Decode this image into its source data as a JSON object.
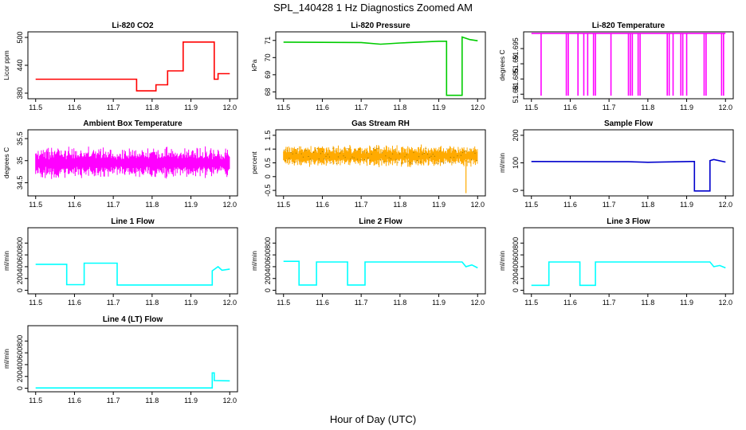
{
  "figure": {
    "title": "SPL_140428 1 Hz Diagnostics Zoomed AM",
    "xlabel": "Hour of Day (UTC)"
  },
  "chart_data": [
    {
      "type": "line",
      "title": "Li-820 CO2",
      "ylabel": "Licor ppm",
      "color": "#ff0000",
      "xlim": [
        11.48,
        12.02
      ],
      "ylim": [
        368,
        512
      ],
      "xticks": [
        "11.5",
        "11.6",
        "11.7",
        "11.8",
        "11.9",
        "12.0"
      ],
      "yticks": [
        380,
        440,
        500
      ],
      "style": "step",
      "x": [
        11.5,
        11.76,
        11.76,
        11.81,
        11.81,
        11.84,
        11.84,
        11.88,
        11.88,
        11.96,
        11.96,
        11.97,
        11.97,
        12.0
      ],
      "y": [
        410,
        410,
        385,
        385,
        398,
        398,
        428,
        428,
        490,
        490,
        410,
        410,
        422,
        422
      ]
    },
    {
      "type": "line",
      "title": "Li-820 Pressure",
      "ylabel": "kPa",
      "color": "#00cc00",
      "xlim": [
        11.48,
        12.02
      ],
      "ylim": [
        67.6,
        71.5
      ],
      "xticks": [
        "11.5",
        "11.6",
        "11.7",
        "11.8",
        "11.9",
        "12.0"
      ],
      "yticks": [
        68,
        69,
        70,
        71
      ],
      "style": "step",
      "x": [
        11.5,
        11.7,
        11.75,
        11.8,
        11.9,
        11.92,
        11.92,
        11.96,
        11.96,
        11.98,
        12.0
      ],
      "y": [
        70.9,
        70.88,
        70.78,
        70.85,
        70.95,
        70.95,
        67.8,
        67.8,
        71.2,
        71.05,
        70.98
      ]
    },
    {
      "type": "line",
      "title": "Li-820 Temperature",
      "ylabel": "degrees C",
      "color": "#ff00ff",
      "xlim": [
        11.48,
        12.02
      ],
      "ylim": [
        51.6785,
        51.7005
      ],
      "xticks": [
        "11.5",
        "11.6",
        "11.7",
        "11.8",
        "11.9",
        "12.0"
      ],
      "yticks": [
        51.68,
        51.685,
        51.69,
        51.695
      ],
      "style": "spikes",
      "baseline": 51.7,
      "low": 51.6795,
      "x": [
        11.525,
        11.59,
        11.595,
        11.62,
        11.635,
        11.645,
        11.66,
        11.665,
        11.705,
        11.75,
        11.755,
        11.76,
        11.775,
        11.78,
        11.85,
        11.855,
        11.865,
        11.885,
        11.89,
        11.9,
        11.945,
        11.95,
        11.99,
        11.995
      ]
    },
    {
      "type": "line",
      "title": "Ambient Box Temperature",
      "ylabel": "degrees C",
      "color": "#ff00ff",
      "xlim": [
        11.48,
        12.02
      ],
      "ylim": [
        34.2,
        35.7
      ],
      "xticks": [
        "11.5",
        "11.6",
        "11.7",
        "11.8",
        "11.9",
        "12.0"
      ],
      "yticks": [
        34.5,
        35.0,
        35.5
      ],
      "style": "noise",
      "center": 34.95,
      "amp": 0.32,
      "x": [
        11.5,
        12.0
      ]
    },
    {
      "type": "line",
      "title": "Gas Stream RH",
      "ylabel": "percent",
      "color": "#ffaa00",
      "xlim": [
        11.48,
        12.02
      ],
      "ylim": [
        -0.7,
        1.7
      ],
      "xticks": [
        "11.5",
        "11.6",
        "11.7",
        "11.8",
        "11.9",
        "12.0"
      ],
      "yticks": [
        -0.5,
        0.0,
        0.5,
        1.0,
        1.5
      ],
      "style": "noise",
      "center": 0.75,
      "amp": 0.35,
      "x": [
        11.5,
        12.0
      ]
    },
    {
      "type": "line",
      "title": "Sample Flow",
      "ylabel": "ml/min",
      "color": "#0000cc",
      "xlim": [
        11.48,
        12.02
      ],
      "ylim": [
        -20,
        220
      ],
      "xticks": [
        "11.5",
        "11.6",
        "11.7",
        "11.8",
        "11.9",
        "12.0"
      ],
      "yticks": [
        0,
        100,
        200
      ],
      "style": "step",
      "x": [
        11.5,
        11.75,
        11.8,
        11.91,
        11.92,
        11.92,
        11.96,
        11.96,
        11.97,
        12.0
      ],
      "y": [
        105,
        104,
        102,
        105,
        105,
        -2,
        -2,
        108,
        112,
        103
      ]
    },
    {
      "type": "line",
      "title": "Line 1 Flow",
      "ylabel": "ml/min",
      "color": "#00ffff",
      "xlim": [
        11.48,
        12.02
      ],
      "ylim": [
        -60,
        1060
      ],
      "xticks": [
        "11.5",
        "11.6",
        "11.7",
        "11.8",
        "11.9",
        "12.0"
      ],
      "yticks": [
        0,
        200,
        400,
        600,
        800
      ],
      "style": "step",
      "x": [
        11.5,
        11.58,
        11.58,
        11.625,
        11.625,
        11.71,
        11.71,
        11.955,
        11.955,
        11.97,
        11.98,
        12.0
      ],
      "y": [
        440,
        440,
        95,
        95,
        460,
        460,
        90,
        90,
        330,
        400,
        340,
        360
      ]
    },
    {
      "type": "line",
      "title": "Line 2 Flow",
      "ylabel": "ml/min",
      "color": "#00ffff",
      "xlim": [
        11.48,
        12.02
      ],
      "ylim": [
        -60,
        1060
      ],
      "xticks": [
        "11.5",
        "11.6",
        "11.7",
        "11.8",
        "11.9",
        "12.0"
      ],
      "yticks": [
        0,
        200,
        400,
        600,
        800
      ],
      "style": "step",
      "x": [
        11.5,
        11.54,
        11.54,
        11.585,
        11.585,
        11.665,
        11.665,
        11.71,
        11.71,
        11.96,
        11.97,
        11.985,
        12.0
      ],
      "y": [
        490,
        490,
        90,
        90,
        480,
        480,
        90,
        90,
        480,
        480,
        400,
        430,
        380
      ]
    },
    {
      "type": "line",
      "title": "Line 3 Flow",
      "ylabel": "ml/min",
      "color": "#00ffff",
      "xlim": [
        11.48,
        12.02
      ],
      "ylim": [
        -60,
        1060
      ],
      "xticks": [
        "11.5",
        "11.6",
        "11.7",
        "11.8",
        "11.9",
        "12.0"
      ],
      "yticks": [
        0,
        200,
        400,
        600,
        800
      ],
      "style": "step",
      "x": [
        11.5,
        11.545,
        11.545,
        11.625,
        11.625,
        11.665,
        11.665,
        11.96,
        11.97,
        11.985,
        12.0
      ],
      "y": [
        85,
        85,
        480,
        480,
        85,
        85,
        480,
        480,
        400,
        420,
        380
      ]
    },
    {
      "type": "line",
      "title": "Line 4 (LT) Flow",
      "ylabel": "ml/min",
      "color": "#00ffff",
      "xlim": [
        11.48,
        12.02
      ],
      "ylim": [
        -60,
        1060
      ],
      "xticks": [
        "11.5",
        "11.6",
        "11.7",
        "11.8",
        "11.9",
        "12.0"
      ],
      "yticks": [
        0,
        200,
        400,
        600,
        800
      ],
      "style": "step",
      "x": [
        11.5,
        11.955,
        11.955,
        11.96,
        11.96,
        12.0
      ],
      "y": [
        5,
        5,
        260,
        260,
        130,
        125
      ]
    }
  ]
}
